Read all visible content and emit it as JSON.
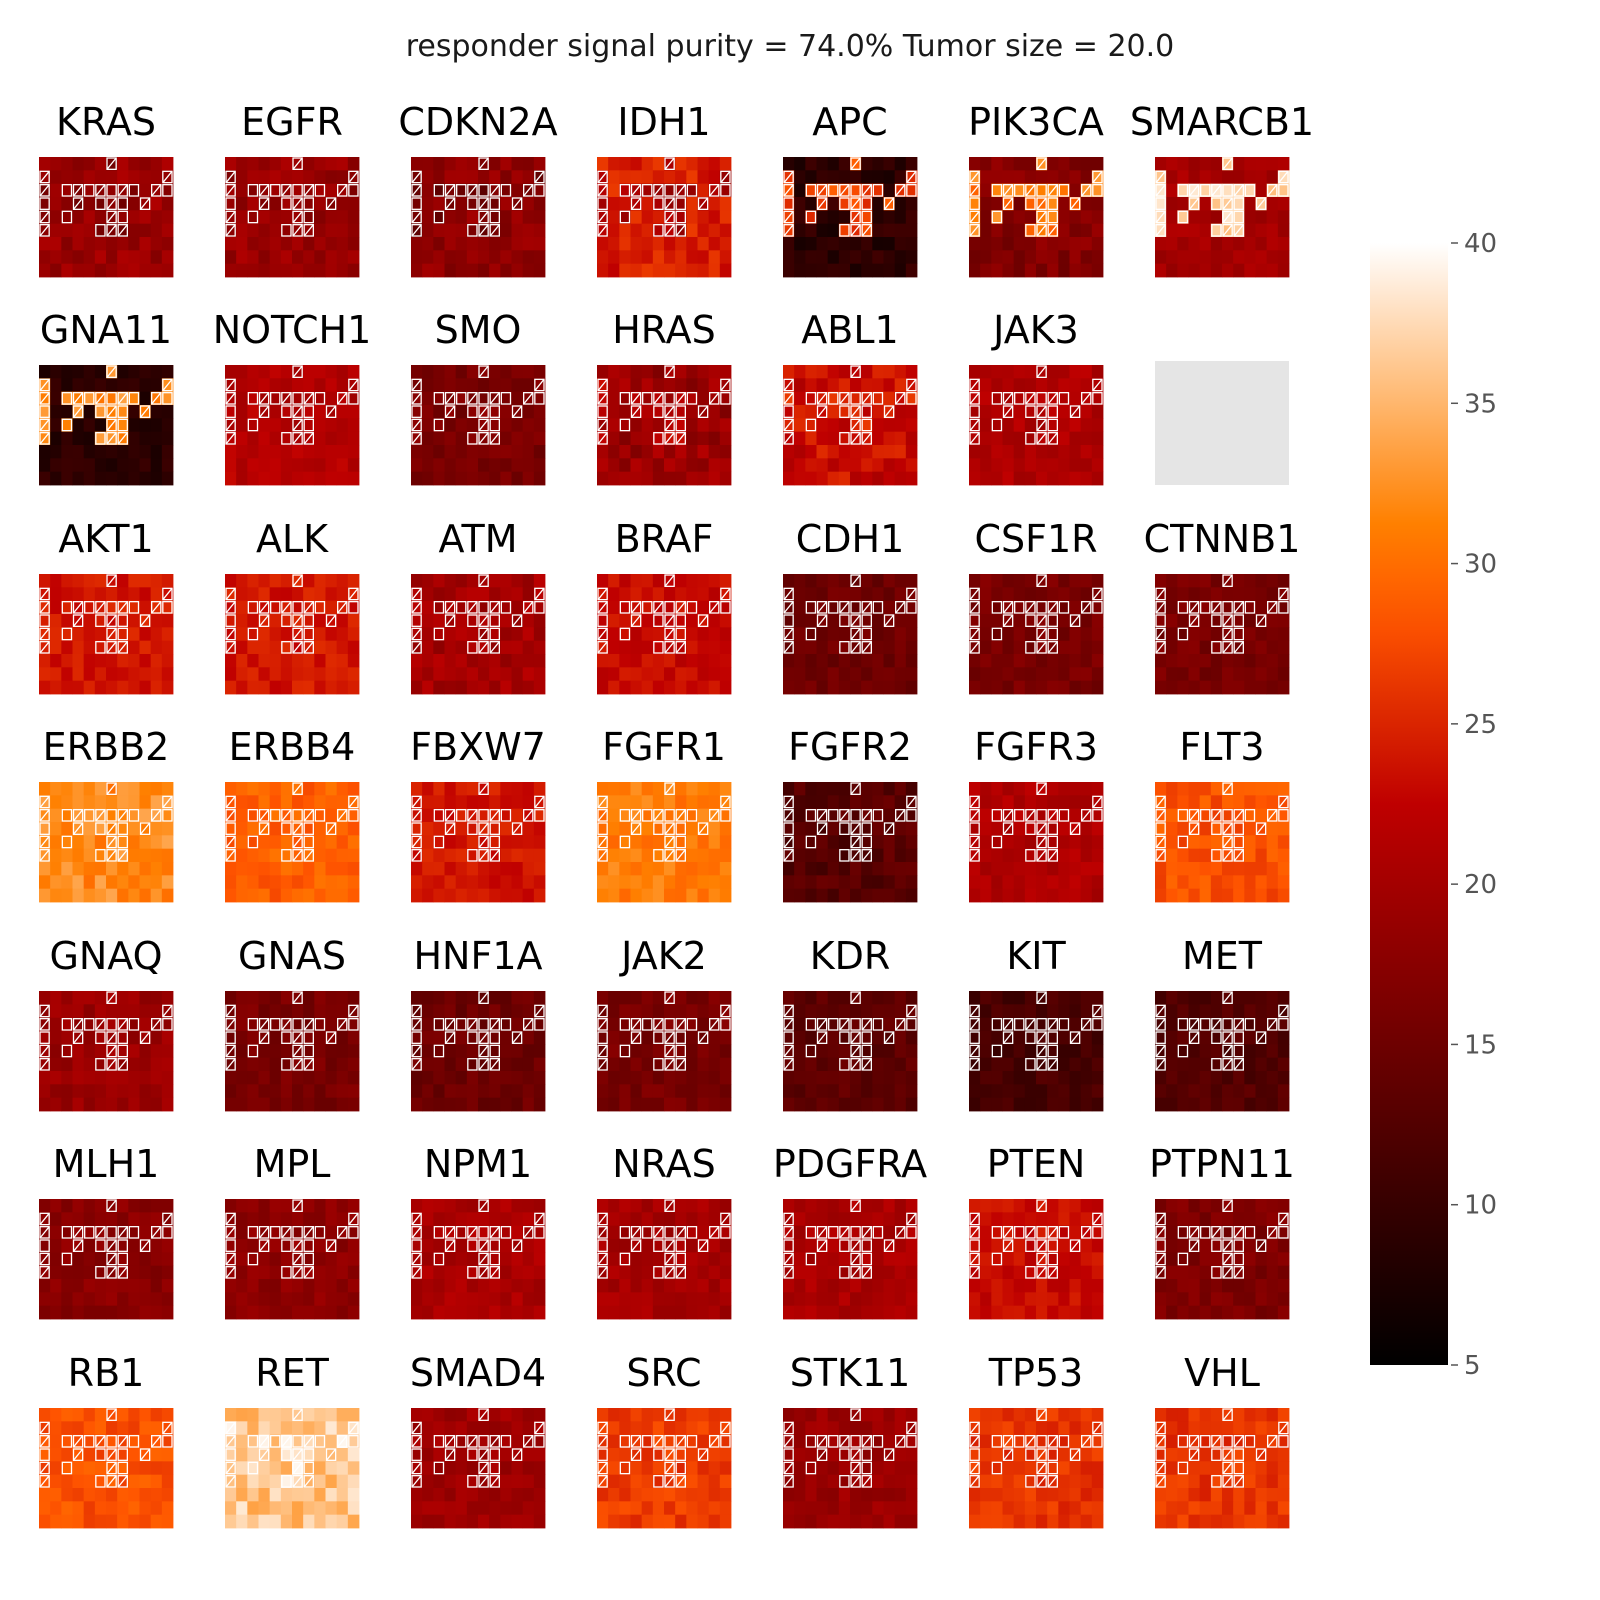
{
  "chart_data": {
    "type": "heatmap",
    "title": "responder signal purity = 74.0% Tumor size = 20.0",
    "grid_shape": [
      9,
      12
    ],
    "colormap": "gist_heat",
    "empty_panel_color": "#e5e5e5",
    "highlight_outline_color": "#ffffff",
    "colorbar": {
      "min": 5,
      "max": 40,
      "ticks": [
        5,
        10,
        15,
        20,
        25,
        30,
        35,
        40
      ]
    },
    "panels": [
      {
        "label": "KRAS",
        "level": 19,
        "spread": 2,
        "responder_level": 17
      },
      {
        "label": "EGFR",
        "level": 19,
        "spread": 2,
        "responder_level": 18
      },
      {
        "label": "CDKN2A",
        "level": 18,
        "spread": 2,
        "responder_level": 15
      },
      {
        "label": "IDH1",
        "level": 24.5,
        "spread": 2,
        "responder_level": 20
      },
      {
        "label": "APC",
        "level": 9,
        "spread": 2,
        "responder_level": 27
      },
      {
        "label": "PIK3CA",
        "level": 17,
        "spread": 2,
        "responder_level": 31
      },
      {
        "label": "SMARCB1",
        "level": 20,
        "spread": 1.5,
        "responder_level": 37
      },
      {
        "label": "GNA11",
        "level": 9,
        "spread": 1.5,
        "responder_level": 32
      },
      {
        "label": "NOTCH1",
        "level": 21.5,
        "spread": 1.5,
        "responder_level": 21
      },
      {
        "label": "SMO",
        "level": 16,
        "spread": 1.5,
        "responder_level": 17
      },
      {
        "label": "HRAS",
        "level": 19,
        "spread": 2.5,
        "responder_level": 21
      },
      {
        "label": "ABL1",
        "level": 23,
        "spread": 2.5,
        "responder_level": 24
      },
      {
        "label": "JAK3",
        "level": 21,
        "spread": 1.5,
        "responder_level": 21
      },
      {
        "label": "",
        "empty": true
      },
      {
        "label": "AKT1",
        "level": 24,
        "spread": 1.5,
        "responder_level": 24
      },
      {
        "label": "ALK",
        "level": 24,
        "spread": 1.5,
        "responder_level": 24
      },
      {
        "label": "ATM",
        "level": 20,
        "spread": 2,
        "responder_level": 20
      },
      {
        "label": "BRAF",
        "level": 23,
        "spread": 1.5,
        "responder_level": 23
      },
      {
        "label": "CDH1",
        "level": 15,
        "spread": 1.5,
        "responder_level": 15
      },
      {
        "label": "CSF1R",
        "level": 16,
        "spread": 1.5,
        "responder_level": 16
      },
      {
        "label": "CTNNB1",
        "level": 16,
        "spread": 1.5,
        "responder_level": 16
      },
      {
        "label": "ERBB2",
        "level": 32,
        "spread": 2,
        "responder_level": 32
      },
      {
        "label": "ERBB4",
        "level": 29,
        "spread": 1.5,
        "responder_level": 29
      },
      {
        "label": "FBXW7",
        "level": 24,
        "spread": 1.5,
        "responder_level": 24
      },
      {
        "label": "FGFR1",
        "level": 31,
        "spread": 1.5,
        "responder_level": 31
      },
      {
        "label": "FGFR2",
        "level": 13,
        "spread": 2,
        "responder_level": 13
      },
      {
        "label": "FGFR3",
        "level": 21,
        "spread": 1.5,
        "responder_level": 21
      },
      {
        "label": "FLT3",
        "level": 28,
        "spread": 1.5,
        "responder_level": 28
      },
      {
        "label": "GNAQ",
        "level": 19,
        "spread": 1.5,
        "responder_level": 19
      },
      {
        "label": "GNAS",
        "level": 16,
        "spread": 1.5,
        "responder_level": 16
      },
      {
        "label": "HNF1A",
        "level": 15,
        "spread": 1.5,
        "responder_level": 15
      },
      {
        "label": "JAK2",
        "level": 16,
        "spread": 1.5,
        "responder_level": 16
      },
      {
        "label": "KDR",
        "level": 13.5,
        "spread": 1.5,
        "responder_level": 13.5
      },
      {
        "label": "KIT",
        "level": 11.5,
        "spread": 1.5,
        "responder_level": 11.5
      },
      {
        "label": "MET",
        "level": 12.5,
        "spread": 1.5,
        "responder_level": 12.5
      },
      {
        "label": "MLH1",
        "level": 17.5,
        "spread": 1.5,
        "responder_level": 17.5
      },
      {
        "label": "MPL",
        "level": 18,
        "spread": 1.5,
        "responder_level": 18
      },
      {
        "label": "NPM1",
        "level": 20.5,
        "spread": 1.5,
        "responder_level": 20.5
      },
      {
        "label": "NRAS",
        "level": 20,
        "spread": 1.5,
        "responder_level": 20
      },
      {
        "label": "PDGFRA",
        "level": 20.5,
        "spread": 1.5,
        "responder_level": 20.5
      },
      {
        "label": "PTEN",
        "level": 23,
        "spread": 1.5,
        "responder_level": 23
      },
      {
        "label": "PTPN11",
        "level": 16.5,
        "spread": 1.5,
        "responder_level": 16.5
      },
      {
        "label": "RB1",
        "level": 28,
        "spread": 1.5,
        "responder_level": 28
      },
      {
        "label": "RET",
        "level": 36,
        "spread": 2.5,
        "responder_level": 37
      },
      {
        "label": "SMAD4",
        "level": 19.5,
        "spread": 1.5,
        "responder_level": 19.5
      },
      {
        "label": "SRC",
        "level": 26.5,
        "spread": 1.5,
        "responder_level": 26.5
      },
      {
        "label": "STK11",
        "level": 19,
        "spread": 1.5,
        "responder_level": 19
      },
      {
        "label": "TP53",
        "level": 26,
        "spread": 1.5,
        "responder_level": 26
      },
      {
        "label": "VHL",
        "level": 26,
        "spread": 1.5,
        "responder_level": 26
      }
    ]
  }
}
